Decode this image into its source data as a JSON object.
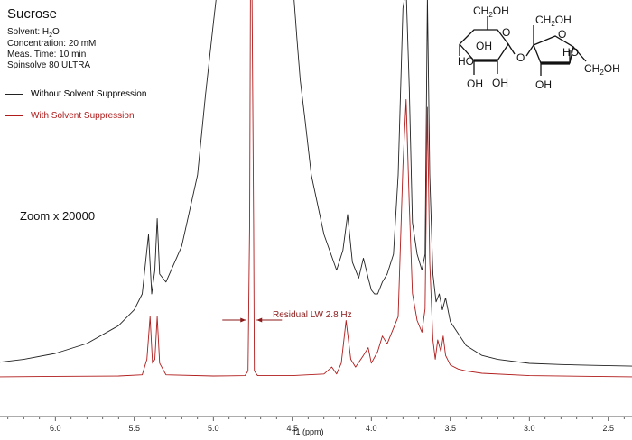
{
  "title": "Sucrose",
  "info": {
    "solvent_prefix": "Solvent: H",
    "solvent_sub": "2",
    "solvent_suffix": "O",
    "concentration": "Concentration: 20 mM",
    "meas_time": "Meas. Time: 10 min",
    "instrument": "Spinsolve 80 ULTRA"
  },
  "zoom_label": "Zoom x 20000",
  "annotation": "Residual LW 2.8 Hz",
  "molecule_labels": {
    "ch2oh": "CH",
    "sub2": "2",
    "oh": "OH",
    "o": "O",
    "ho": "HO"
  },
  "chart_data": {
    "type": "line",
    "title": "",
    "xlabel": "f1 (ppm)",
    "ylabel": "",
    "x_reversed": true,
    "xlim": [
      6.35,
      2.35
    ],
    "ylim": [
      0,
      1
    ],
    "xticks": [
      "6.0",
      "5.5",
      "5.0",
      "4.5",
      "4.0",
      "3.5",
      "3.0",
      "2.5"
    ],
    "xtick_values": [
      6.0,
      5.5,
      5.0,
      4.5,
      4.0,
      3.5,
      3.0,
      2.5
    ],
    "legend_position": "top-left",
    "series": [
      {
        "name": "Without Solvent Suppression",
        "color": "#222222",
        "x": [
          6.35,
          6.2,
          6.0,
          5.8,
          5.6,
          5.5,
          5.45,
          5.41,
          5.39,
          5.37,
          5.355,
          5.34,
          5.3,
          5.2,
          5.1,
          5.05,
          5.0,
          4.98,
          4.95,
          4.5,
          4.47,
          4.45,
          4.42,
          4.38,
          4.3,
          4.22,
          4.18,
          4.15,
          4.12,
          4.08,
          4.05,
          4.02,
          4.0,
          3.98,
          3.96,
          3.93,
          3.9,
          3.86,
          3.83,
          3.8,
          3.78,
          3.76,
          3.74,
          3.71,
          3.68,
          3.66,
          3.645,
          3.63,
          3.61,
          3.59,
          3.57,
          3.55,
          3.53,
          3.5,
          3.45,
          3.4,
          3.3,
          3.2,
          3.0,
          2.8,
          2.6,
          2.35
        ],
        "y": [
          0.028,
          0.035,
          0.05,
          0.075,
          0.12,
          0.16,
          0.2,
          0.35,
          0.2,
          0.26,
          0.39,
          0.25,
          0.23,
          0.32,
          0.5,
          0.7,
          0.88,
          0.95,
          1.0,
          1.0,
          0.84,
          0.74,
          0.64,
          0.5,
          0.35,
          0.26,
          0.31,
          0.4,
          0.28,
          0.24,
          0.29,
          0.24,
          0.21,
          0.2,
          0.2,
          0.23,
          0.25,
          0.3,
          0.5,
          0.92,
          0.97,
          0.72,
          0.38,
          0.3,
          0.26,
          0.3,
          0.95,
          0.5,
          0.25,
          0.18,
          0.2,
          0.16,
          0.19,
          0.13,
          0.1,
          0.07,
          0.045,
          0.035,
          0.025,
          0.022,
          0.02,
          0.018
        ]
      },
      {
        "name": "With Solvent Suppression",
        "color": "#b01b1b",
        "x": [
          6.35,
          6.0,
          5.6,
          5.45,
          5.42,
          5.4,
          5.385,
          5.37,
          5.355,
          5.34,
          5.3,
          5.0,
          4.8,
          4.78,
          4.77,
          4.765,
          4.755,
          4.745,
          4.74,
          4.72,
          4.5,
          4.3,
          4.25,
          4.22,
          4.19,
          4.16,
          4.13,
          4.1,
          4.05,
          4.02,
          4.0,
          3.96,
          3.93,
          3.9,
          3.86,
          3.83,
          3.8,
          3.78,
          3.76,
          3.74,
          3.71,
          3.68,
          3.66,
          3.645,
          3.63,
          3.61,
          3.595,
          3.58,
          3.56,
          3.545,
          3.53,
          3.5,
          3.45,
          3.4,
          3.3,
          3.0,
          2.6,
          2.35
        ],
        "y": [
          0.005,
          0.006,
          0.007,
          0.01,
          0.05,
          0.16,
          0.04,
          0.05,
          0.16,
          0.04,
          0.01,
          0.007,
          0.008,
          0.02,
          0.4,
          1.0,
          1.0,
          0.4,
          0.02,
          0.008,
          0.008,
          0.012,
          0.03,
          0.012,
          0.04,
          0.15,
          0.05,
          0.03,
          0.06,
          0.08,
          0.04,
          0.07,
          0.11,
          0.09,
          0.13,
          0.16,
          0.55,
          0.72,
          0.45,
          0.22,
          0.15,
          0.12,
          0.18,
          0.7,
          0.3,
          0.1,
          0.05,
          0.1,
          0.07,
          0.11,
          0.06,
          0.035,
          0.025,
          0.02,
          0.014,
          0.008,
          0.006,
          0.005
        ]
      }
    ]
  }
}
